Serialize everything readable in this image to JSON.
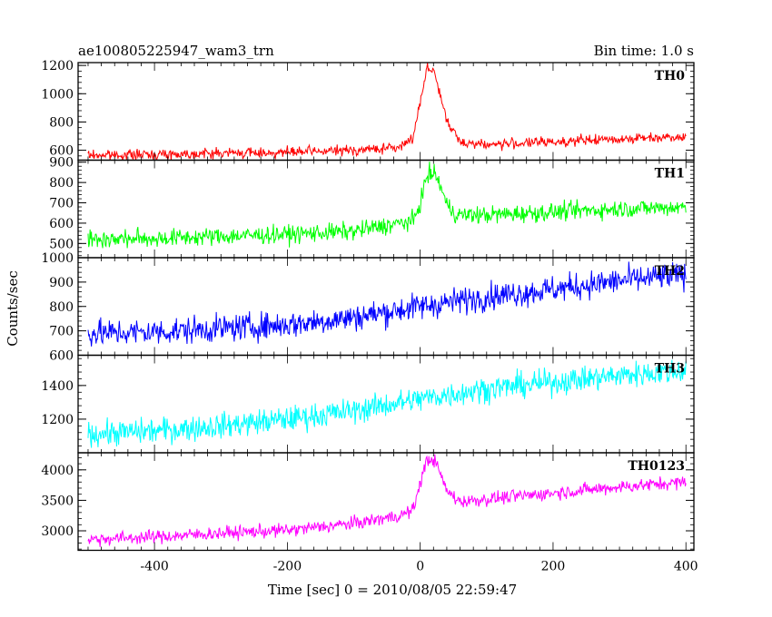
{
  "header": {
    "title": "ae100805225947_wam3_trn",
    "bin_time": "Bin time: 1.0 s"
  },
  "chart_data": {
    "type": "line",
    "xlabel": "Time [sec] 0 = 2010/08/05 22:59:47",
    "ylabel": "Counts/sec",
    "xlim": [
      -515,
      412
    ],
    "xticks": [
      -400,
      -200,
      0,
      200,
      400
    ],
    "panels": [
      {
        "name": "TH0",
        "color": "#ff0000",
        "ylim": [
          530,
          1220
        ],
        "yticks": [
          600,
          800,
          1000,
          1200
        ],
        "x": [
          -500,
          -400,
          -300,
          -200,
          -100,
          -30,
          -10,
          0,
          10,
          20,
          30,
          40,
          60,
          100,
          200,
          300,
          400
        ],
        "mean": [
          565,
          570,
          580,
          585,
          600,
          620,
          700,
          950,
          1180,
          1170,
          1000,
          800,
          660,
          640,
          660,
          680,
          700
        ],
        "noise": 18
      },
      {
        "name": "TH1",
        "color": "#00ff00",
        "ylim": [
          430,
          910
        ],
        "yticks": [
          500,
          600,
          700,
          800,
          900
        ],
        "x": [
          -500,
          -400,
          -300,
          -200,
          -100,
          -30,
          -10,
          0,
          10,
          20,
          30,
          40,
          55,
          100,
          200,
          300,
          400
        ],
        "mean": [
          520,
          525,
          535,
          545,
          560,
          600,
          610,
          700,
          830,
          850,
          790,
          690,
          640,
          640,
          655,
          670,
          680
        ],
        "noise": 22
      },
      {
        "name": "TH2",
        "color": "#0000ff",
        "ylim": [
          600,
          1000
        ],
        "yticks": [
          600,
          700,
          800,
          900,
          1000
        ],
        "x": [
          -500,
          -400,
          -300,
          -200,
          -100,
          0,
          100,
          200,
          300,
          400
        ],
        "mean": [
          690,
          695,
          710,
          725,
          755,
          800,
          840,
          870,
          905,
          930
        ],
        "noise": 28
      },
      {
        "name": "TH3",
        "color": "#00ffff",
        "ylim": [
          1000,
          1580
        ],
        "yticks": [
          1200,
          1400
        ],
        "x": [
          -500,
          -400,
          -300,
          -200,
          -100,
          0,
          100,
          200,
          300,
          400
        ],
        "mean": [
          1110,
          1130,
          1160,
          1200,
          1250,
          1320,
          1380,
          1420,
          1460,
          1490
        ],
        "noise": 38
      },
      {
        "name": "TH0123",
        "color": "#ff00ff",
        "ylim": [
          2680,
          4280
        ],
        "yticks": [
          3000,
          3500,
          4000
        ],
        "x": [
          -500,
          -400,
          -300,
          -200,
          -100,
          -30,
          -10,
          0,
          10,
          20,
          30,
          40,
          60,
          100,
          200,
          300,
          400
        ],
        "mean": [
          2860,
          2900,
          2960,
          3010,
          3120,
          3250,
          3350,
          3800,
          4150,
          4180,
          3950,
          3650,
          3480,
          3520,
          3620,
          3720,
          3800
        ],
        "noise": 55
      }
    ]
  }
}
